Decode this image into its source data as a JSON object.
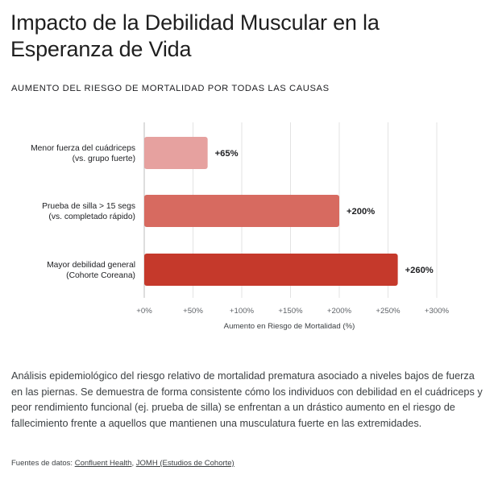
{
  "title": "Impacto de la Debilidad Muscular en la Esperanza de Vida",
  "subtitle": "AUMENTO DEL RIESGO DE MORTALIDAD POR TODAS LAS CAUSAS",
  "chart_data": {
    "type": "bar",
    "orientation": "horizontal",
    "categories": [
      [
        "Menor fuerza del cuádriceps",
        "(vs. grupo fuerte)"
      ],
      [
        "Prueba de silla > 15 segs",
        "(vs. completado rápido)"
      ],
      [
        "Mayor debilidad general",
        "(Cohorte Coreana)"
      ]
    ],
    "values": [
      65,
      200,
      260
    ],
    "value_labels": [
      "+65%",
      "+200%",
      "+260%"
    ],
    "colors": [
      "#e6a19f",
      "#d76a60",
      "#c5392b"
    ],
    "xlim": [
      0,
      300
    ],
    "ticks": [
      0,
      50,
      100,
      150,
      200,
      250,
      300
    ],
    "tick_labels": [
      "+0%",
      "+50%",
      "+100%",
      "+150%",
      "+200%",
      "+250%",
      "+300%"
    ],
    "xlabel": "Aumento en Riesgo de Mortalidad (%)",
    "grid": true
  },
  "description": "Análisis epidemiológico del riesgo relativo de mortalidad prematura asociado a niveles bajos de fuerza en las piernas. Se demuestra de forma consistente cómo los individuos con debilidad en el cuádriceps y peor rendimiento funcional (ej. prueba de silla) se enfrentan a un drástico aumento en el riesgo de fallecimiento frente a aquellos que mantienen una musculatura fuerte en las extremidades.",
  "sources": {
    "label": "Fuentes de datos:",
    "links": [
      "Confluent Health",
      "JOMH (Estudios de Cohorte)"
    ],
    "separator": ", "
  }
}
